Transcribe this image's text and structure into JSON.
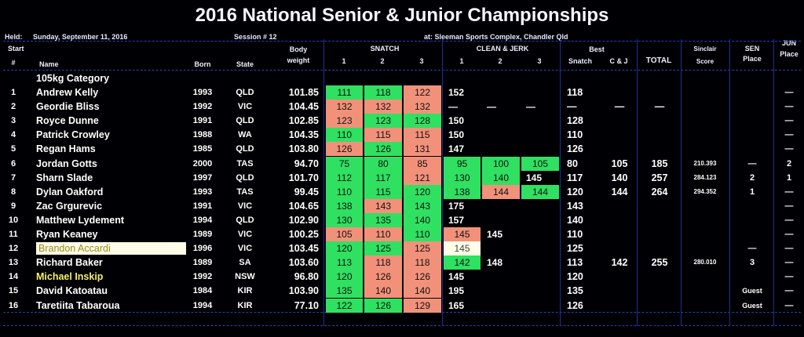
{
  "title": "2016 National Senior & Junior Championships",
  "meta": {
    "held_label": "Held:",
    "held_date": "Sunday, September 11, 2016",
    "session": "Session # 12",
    "venue": "at: Sleeman Sports Complex, Chandler Qld"
  },
  "headers": {
    "start": "Start",
    "num": "#",
    "name": "Name",
    "born": "Born",
    "state": "State",
    "body_top": "Body",
    "body_bottom": "weight",
    "snatch": "SNATCH",
    "cj": "CLEAN & JERK",
    "n1": "1",
    "n2": "2",
    "n3": "3",
    "c1": "1",
    "c2": "2",
    "c3": "3",
    "best": "Best",
    "best_snatch": "Snatch",
    "best_cj": "C & J",
    "total": "TOTAL",
    "sinclair_top": "Sinclair",
    "sinclair_bottom": "Score",
    "sen_top": "SEN",
    "sen_bottom": "Place",
    "jun_top": "JUN",
    "jun_bottom": "Place"
  },
  "category": "105kg Category",
  "colors": {
    "good": "#2fe061",
    "bad": "#f2917a",
    "grid": "#1c2f9c"
  },
  "rows": [
    {
      "start": "1",
      "name": "Andrew Kelly",
      "born": "1993",
      "state": "QLD",
      "bw": "101.85",
      "sn": [
        {
          "v": "111",
          "s": "g"
        },
        {
          "v": "118",
          "s": "g"
        },
        {
          "v": "122",
          "s": "b"
        }
      ],
      "cj": [
        {
          "v": "152",
          "s": ""
        },
        {
          "v": "",
          "s": ""
        },
        {
          "v": "",
          "s": ""
        }
      ],
      "best_sn": "118",
      "best_cj": "",
      "total": "",
      "sinclair": "",
      "sen": "",
      "jun": "—"
    },
    {
      "start": "2",
      "name": "Geordie Bliss",
      "born": "1992",
      "state": "VIC",
      "bw": "104.45",
      "sn": [
        {
          "v": "132",
          "s": "b"
        },
        {
          "v": "132",
          "s": "b"
        },
        {
          "v": "132",
          "s": "b"
        }
      ],
      "cj": [
        {
          "v": "—",
          "s": ""
        },
        {
          "v": "—",
          "s": ""
        },
        {
          "v": "—",
          "s": ""
        }
      ],
      "best_sn": "—",
      "best_cj": "—",
      "total": "—",
      "sinclair": "",
      "sen": "",
      "jun": "—"
    },
    {
      "start": "3",
      "name": "Royce Dunne",
      "born": "1991",
      "state": "QLD",
      "bw": "102.85",
      "sn": [
        {
          "v": "123",
          "s": "b"
        },
        {
          "v": "123",
          "s": "g"
        },
        {
          "v": "128",
          "s": "g"
        }
      ],
      "cj": [
        {
          "v": "150",
          "s": ""
        },
        {
          "v": "",
          "s": ""
        },
        {
          "v": "",
          "s": ""
        }
      ],
      "best_sn": "128",
      "best_cj": "",
      "total": "",
      "sinclair": "",
      "sen": "",
      "jun": "—"
    },
    {
      "start": "4",
      "name": "Patrick Crowley",
      "born": "1988",
      "state": "WA",
      "bw": "104.35",
      "sn": [
        {
          "v": "110",
          "s": "g"
        },
        {
          "v": "115",
          "s": "b"
        },
        {
          "v": "115",
          "s": "b"
        }
      ],
      "cj": [
        {
          "v": "150",
          "s": ""
        },
        {
          "v": "",
          "s": ""
        },
        {
          "v": "",
          "s": ""
        }
      ],
      "best_sn": "110",
      "best_cj": "",
      "total": "",
      "sinclair": "",
      "sen": "",
      "jun": "—"
    },
    {
      "start": "5",
      "name": "Regan Hams",
      "born": "1985",
      "state": "QLD",
      "bw": "103.80",
      "sn": [
        {
          "v": "126",
          "s": "b"
        },
        {
          "v": "126",
          "s": "g"
        },
        {
          "v": "131",
          "s": "b"
        }
      ],
      "cj": [
        {
          "v": "147",
          "s": ""
        },
        {
          "v": "",
          "s": ""
        },
        {
          "v": "",
          "s": ""
        }
      ],
      "best_sn": "126",
      "best_cj": "",
      "total": "",
      "sinclair": "",
      "sen": "",
      "jun": "—"
    },
    {
      "start": "6",
      "name": "Jordan Gotts",
      "born": "2000",
      "state": "TAS",
      "bw": "94.70",
      "sn": [
        {
          "v": "75",
          "s": "g"
        },
        {
          "v": "80",
          "s": "g"
        },
        {
          "v": "85",
          "s": "b"
        }
      ],
      "cj": [
        {
          "v": "95",
          "s": "g"
        },
        {
          "v": "100",
          "s": "g"
        },
        {
          "v": "105",
          "s": "g"
        }
      ],
      "best_sn": "80",
      "best_cj": "105",
      "total": "185",
      "sinclair": "210.393",
      "sen": "—",
      "jun": "2"
    },
    {
      "start": "7",
      "name": "Sharn Slade",
      "born": "1997",
      "state": "QLD",
      "bw": "101.70",
      "sn": [
        {
          "v": "112",
          "s": "g"
        },
        {
          "v": "117",
          "s": "g"
        },
        {
          "v": "121",
          "s": "b"
        }
      ],
      "cj": [
        {
          "v": "130",
          "s": "g"
        },
        {
          "v": "140",
          "s": "g"
        },
        {
          "v": "145",
          "s": ""
        }
      ],
      "best_sn": "117",
      "best_cj": "140",
      "total": "257",
      "sinclair": "284.123",
      "sen": "2",
      "jun": "1"
    },
    {
      "start": "8",
      "name": "Dylan Oakford",
      "born": "1993",
      "state": "TAS",
      "bw": "99.45",
      "sn": [
        {
          "v": "110",
          "s": "g"
        },
        {
          "v": "115",
          "s": "g"
        },
        {
          "v": "120",
          "s": "g"
        }
      ],
      "cj": [
        {
          "v": "138",
          "s": "g"
        },
        {
          "v": "144",
          "s": "b"
        },
        {
          "v": "144",
          "s": "g"
        }
      ],
      "best_sn": "120",
      "best_cj": "144",
      "total": "264",
      "sinclair": "294.352",
      "sen": "1",
      "jun": "—"
    },
    {
      "start": "9",
      "name": "Zac Grgurevic",
      "born": "1991",
      "state": "VIC",
      "bw": "104.65",
      "sn": [
        {
          "v": "138",
          "s": "g"
        },
        {
          "v": "143",
          "s": "b"
        },
        {
          "v": "143",
          "s": "g"
        }
      ],
      "cj": [
        {
          "v": "175",
          "s": ""
        },
        {
          "v": "",
          "s": ""
        },
        {
          "v": "",
          "s": ""
        }
      ],
      "best_sn": "143",
      "best_cj": "",
      "total": "",
      "sinclair": "",
      "sen": "",
      "jun": "—"
    },
    {
      "start": "10",
      "name": "Matthew Lydement",
      "born": "1994",
      "state": "QLD",
      "bw": "102.90",
      "sn": [
        {
          "v": "130",
          "s": "g"
        },
        {
          "v": "135",
          "s": "g"
        },
        {
          "v": "140",
          "s": "g"
        }
      ],
      "cj": [
        {
          "v": "157",
          "s": ""
        },
        {
          "v": "",
          "s": ""
        },
        {
          "v": "",
          "s": ""
        }
      ],
      "best_sn": "140",
      "best_cj": "",
      "total": "",
      "sinclair": "",
      "sen": "",
      "jun": "—"
    },
    {
      "start": "11",
      "name": "Ryan Keaney",
      "born": "1989",
      "state": "VIC",
      "bw": "100.25",
      "sn": [
        {
          "v": "105",
          "s": "b"
        },
        {
          "v": "110",
          "s": "b"
        },
        {
          "v": "110",
          "s": "g"
        }
      ],
      "cj": [
        {
          "v": "145",
          "s": "b"
        },
        {
          "v": "145",
          "s": ""
        },
        {
          "v": "",
          "s": ""
        }
      ],
      "best_sn": "110",
      "best_cj": "",
      "total": "",
      "sinclair": "",
      "sen": "",
      "jun": "—"
    },
    {
      "start": "12",
      "name": "Brandon Accardi",
      "born": "1996",
      "state": "VIC",
      "bw": "103.45",
      "sn": [
        {
          "v": "120",
          "s": "g"
        },
        {
          "v": "125",
          "s": "g"
        },
        {
          "v": "125",
          "s": "b"
        }
      ],
      "cj": [
        {
          "v": "145",
          "s": "w"
        },
        {
          "v": "",
          "s": ""
        },
        {
          "v": "",
          "s": ""
        }
      ],
      "best_sn": "125",
      "best_cj": "",
      "total": "",
      "sinclair": "",
      "sen": "—",
      "jun": "—",
      "highlight": true
    },
    {
      "start": "13",
      "name": "Richard Baker",
      "born": "1989",
      "state": "SA",
      "bw": "103.60",
      "sn": [
        {
          "v": "113",
          "s": "g"
        },
        {
          "v": "118",
          "s": "b"
        },
        {
          "v": "118",
          "s": "b"
        }
      ],
      "cj": [
        {
          "v": "142",
          "s": "g"
        },
        {
          "v": "148",
          "s": ""
        },
        {
          "v": "",
          "s": ""
        }
      ],
      "best_sn": "113",
      "best_cj": "142",
      "total": "255",
      "sinclair": "280.010",
      "sen": "3",
      "jun": "—"
    },
    {
      "start": "14",
      "name": "Michael Inskip",
      "born": "1992",
      "state": "NSW",
      "bw": "96.80",
      "sn": [
        {
          "v": "120",
          "s": "g"
        },
        {
          "v": "126",
          "s": "b"
        },
        {
          "v": "126",
          "s": "b"
        }
      ],
      "cj": [
        {
          "v": "145",
          "s": ""
        },
        {
          "v": "",
          "s": ""
        },
        {
          "v": "",
          "s": ""
        }
      ],
      "best_sn": "120",
      "best_cj": "",
      "total": "",
      "sinclair": "",
      "sen": "",
      "jun": "—",
      "yellow": true
    },
    {
      "start": "15",
      "name": "David Katoatau",
      "born": "1984",
      "state": "KIR",
      "bw": "103.90",
      "sn": [
        {
          "v": "135",
          "s": "g"
        },
        {
          "v": "140",
          "s": "b"
        },
        {
          "v": "140",
          "s": "b"
        }
      ],
      "cj": [
        {
          "v": "195",
          "s": ""
        },
        {
          "v": "",
          "s": ""
        },
        {
          "v": "",
          "s": ""
        }
      ],
      "best_sn": "135",
      "best_cj": "",
      "total": "",
      "sinclair": "",
      "sen": "Guest",
      "jun": "—"
    },
    {
      "start": "16",
      "name": "Taretiita Tabaroua",
      "born": "1994",
      "state": "KIR",
      "bw": "77.10",
      "sn": [
        {
          "v": "122",
          "s": "g"
        },
        {
          "v": "126",
          "s": "g"
        },
        {
          "v": "129",
          "s": "b"
        }
      ],
      "cj": [
        {
          "v": "165",
          "s": ""
        },
        {
          "v": "",
          "s": ""
        },
        {
          "v": "",
          "s": ""
        }
      ],
      "best_sn": "126",
      "best_cj": "",
      "total": "",
      "sinclair": "",
      "sen": "Guest",
      "jun": "—"
    }
  ]
}
